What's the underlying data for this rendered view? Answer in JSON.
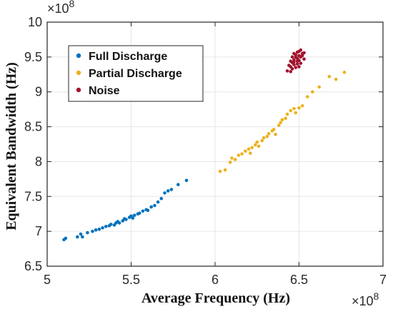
{
  "colors": {
    "full_discharge": "#0072BD",
    "partial_discharge": "#EDB120",
    "noise": "#A2142F",
    "grid": "#e6e6e6",
    "axis": "#262626"
  },
  "chart_data": {
    "type": "scatter",
    "title": "",
    "xlabel": "Average Frequency (Hz)",
    "ylabel": "Equivalent Bandwidth (Hz)",
    "x_exponent_label": "×10^8",
    "y_exponent_label": "×10^8",
    "xlim": [
      5,
      7
    ],
    "ylim": [
      6.5,
      10
    ],
    "x_ticks": [
      5,
      5.5,
      6,
      6.5,
      7
    ],
    "y_ticks": [
      6.5,
      7,
      7.5,
      8,
      8.5,
      9,
      9.5,
      10
    ],
    "x_tick_labels": [
      "5",
      "5.5",
      "6",
      "6.5",
      "7"
    ],
    "y_tick_labels": [
      "6.5",
      "7",
      "7.5",
      "8",
      "8.5",
      "9",
      "9.5",
      "10"
    ],
    "grid": true,
    "legend_position": "top-left",
    "series": [
      {
        "name": "Full Discharge",
        "color": "#0072BD",
        "points": [
          [
            5.1,
            6.88
          ],
          [
            5.11,
            6.9
          ],
          [
            5.18,
            6.92
          ],
          [
            5.2,
            6.96
          ],
          [
            5.21,
            6.92
          ],
          [
            5.24,
            6.98
          ],
          [
            5.27,
            7.0
          ],
          [
            5.29,
            7.02
          ],
          [
            5.31,
            7.03
          ],
          [
            5.33,
            7.05
          ],
          [
            5.35,
            7.07
          ],
          [
            5.37,
            7.08
          ],
          [
            5.38,
            7.1
          ],
          [
            5.4,
            7.09
          ],
          [
            5.41,
            7.12
          ],
          [
            5.42,
            7.14
          ],
          [
            5.43,
            7.12
          ],
          [
            5.45,
            7.15
          ],
          [
            5.46,
            7.18
          ],
          [
            5.47,
            7.17
          ],
          [
            5.49,
            7.2
          ],
          [
            5.5,
            7.22
          ],
          [
            5.51,
            7.19
          ],
          [
            5.52,
            7.23
          ],
          [
            5.54,
            7.25
          ],
          [
            5.55,
            7.26
          ],
          [
            5.57,
            7.29
          ],
          [
            5.59,
            7.31
          ],
          [
            5.6,
            7.3
          ],
          [
            5.62,
            7.35
          ],
          [
            5.64,
            7.37
          ],
          [
            5.66,
            7.42
          ],
          [
            5.68,
            7.47
          ],
          [
            5.7,
            7.55
          ],
          [
            5.72,
            7.58
          ],
          [
            5.74,
            7.6
          ],
          [
            5.78,
            7.67
          ],
          [
            5.83,
            7.73
          ]
        ]
      },
      {
        "name": "Partial Discharge",
        "color": "#EDB120",
        "points": [
          [
            6.03,
            7.86
          ],
          [
            6.06,
            7.88
          ],
          [
            6.09,
            7.99
          ],
          [
            6.1,
            8.05
          ],
          [
            6.12,
            8.03
          ],
          [
            6.14,
            8.09
          ],
          [
            6.16,
            8.11
          ],
          [
            6.18,
            8.15
          ],
          [
            6.2,
            8.18
          ],
          [
            6.21,
            8.12
          ],
          [
            6.22,
            8.2
          ],
          [
            6.24,
            8.24
          ],
          [
            6.25,
            8.28
          ],
          [
            6.26,
            8.22
          ],
          [
            6.28,
            8.3
          ],
          [
            6.29,
            8.34
          ],
          [
            6.31,
            8.36
          ],
          [
            6.32,
            8.4
          ],
          [
            6.34,
            8.44
          ],
          [
            6.35,
            8.46
          ],
          [
            6.36,
            8.39
          ],
          [
            6.38,
            8.52
          ],
          [
            6.39,
            8.56
          ],
          [
            6.4,
            8.6
          ],
          [
            6.42,
            8.62
          ],
          [
            6.43,
            8.68
          ],
          [
            6.45,
            8.73
          ],
          [
            6.47,
            8.76
          ],
          [
            6.48,
            8.7
          ],
          [
            6.5,
            8.77
          ],
          [
            6.52,
            8.8
          ],
          [
            6.55,
            8.93
          ],
          [
            6.58,
            9.0
          ],
          [
            6.62,
            9.07
          ],
          [
            6.68,
            9.22
          ],
          [
            6.72,
            9.18
          ],
          [
            6.77,
            9.28
          ]
        ]
      },
      {
        "name": "Noise",
        "color": "#A2142F",
        "points": [
          [
            6.43,
            9.3
          ],
          [
            6.45,
            9.36
          ],
          [
            6.46,
            9.42
          ],
          [
            6.47,
            9.46
          ],
          [
            6.47,
            9.39
          ],
          [
            6.48,
            9.5
          ],
          [
            6.49,
            9.44
          ],
          [
            6.5,
            9.52
          ],
          [
            6.5,
            9.58
          ],
          [
            6.51,
            9.41
          ],
          [
            6.52,
            9.55
          ],
          [
            6.48,
            9.35
          ],
          [
            6.46,
            9.33
          ],
          [
            6.49,
            9.48
          ],
          [
            6.44,
            9.38
          ],
          [
            6.51,
            9.5
          ],
          [
            6.53,
            9.47
          ],
          [
            6.47,
            9.55
          ],
          [
            6.45,
            9.44
          ],
          [
            6.5,
            9.45
          ],
          [
            6.52,
            9.52
          ],
          [
            6.46,
            9.5
          ],
          [
            6.49,
            9.4
          ],
          [
            6.48,
            9.53
          ],
          [
            6.5,
            9.36
          ],
          [
            6.45,
            9.29
          ],
          [
            6.53,
            9.56
          ],
          [
            6.51,
            9.6
          ],
          [
            6.47,
            9.43
          ],
          [
            6.49,
            9.57
          ]
        ]
      }
    ]
  }
}
